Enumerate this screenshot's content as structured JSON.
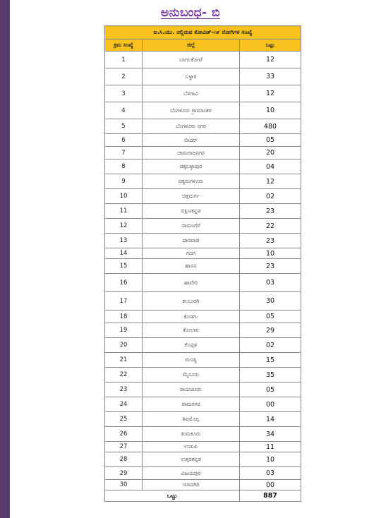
{
  "title": "ಅನುಬಂಧ- ಬಿ",
  "table": {
    "caption": "ಐ.ಸಿ.ಯು. ನಲ್ಲಿರುವ ಕೋವಿಡ್-೧೯ ರೋಗಿಗಳ ಸಂಖ್ಯೆ",
    "headers": [
      "ಕ್ರಮ ಸಂಖ್ಯೆ",
      "ಜಿಲ್ಲೆ",
      "ಒಟ್ಟು"
    ],
    "rows": [
      {
        "no": "1",
        "district": "ಬಾಗಲಕೋಟೆ",
        "count": "12"
      },
      {
        "no": "2",
        "district": "ಬಳ್ಳಾರಿ",
        "count": "33"
      },
      {
        "no": "3",
        "district": "ಬೆಳಗಾವಿ",
        "count": "12"
      },
      {
        "no": "4",
        "district": "ಬೆಂಗಳೂರು ಗ್ರಾಮಾಂತರ",
        "count": "10"
      },
      {
        "no": "5",
        "district": "ಬೆಂಗಳೂರು ನಗರ",
        "count": "480"
      },
      {
        "no": "6",
        "district": "ಬೀದರ್",
        "count": "05"
      },
      {
        "no": "7",
        "district": "ಚಾಮರಾಜನಗರ",
        "count": "20"
      },
      {
        "no": "8",
        "district": "ಚಿಕ್ಕಬಳ್ಳಾಪುರ",
        "count": "04"
      },
      {
        "no": "9",
        "district": "ಚಿಕ್ಕಮಗಳೂರು",
        "count": "12"
      },
      {
        "no": "10",
        "district": "ಚಿತ್ರದುರ್ಗ",
        "count": "02"
      },
      {
        "no": "11",
        "district": "ದಕ್ಷಿಣಕನ್ನಡ",
        "count": "23"
      },
      {
        "no": "12",
        "district": "ದಾವಣಗೆರೆ",
        "count": "22"
      },
      {
        "no": "13",
        "district": "ಧಾರವಾಡ",
        "count": "23"
      },
      {
        "no": "14",
        "district": "ಗದಗ",
        "count": "10"
      },
      {
        "no": "15",
        "district": "ಹಾಸನ",
        "count": "23"
      },
      {
        "no": "16",
        "district": "ಹಾವೇರಿ",
        "count": "03"
      },
      {
        "no": "17",
        "district": "ಕಲಬುರಗಿ",
        "count": "30"
      },
      {
        "no": "18",
        "district": "ಕೊಡಗು",
        "count": "05"
      },
      {
        "no": "19",
        "district": "ಕೋಲಾರ",
        "count": "29"
      },
      {
        "no": "20",
        "district": "ಕೊಪ್ಪಳ",
        "count": "02"
      },
      {
        "no": "21",
        "district": "ಮಂಡ್ಯ",
        "count": "15"
      },
      {
        "no": "22",
        "district": "ಮೈಸೂರು",
        "count": "35"
      },
      {
        "no": "23",
        "district": "ರಾಯಚೂರು",
        "count": "05"
      },
      {
        "no": "24",
        "district": "ರಾಮನಗರ",
        "count": "00"
      },
      {
        "no": "25",
        "district": "ಶಿವಮೊಗ್ಗ",
        "count": "14"
      },
      {
        "no": "26",
        "district": "ತುಮಕೂರು",
        "count": "34"
      },
      {
        "no": "27",
        "district": "ಉಡುಪಿ",
        "count": "11"
      },
      {
        "no": "28",
        "district": "ಉತ್ತರಕನ್ನಡ",
        "count": "10"
      },
      {
        "no": "29",
        "district": "ವಿಜಯಪುರ",
        "count": "03"
      },
      {
        "no": "30",
        "district": "ಯಾದಗಿರಿ",
        "count": "00"
      }
    ],
    "total_label": "ಒಟ್ಟು",
    "total_value": "887"
  }
}
